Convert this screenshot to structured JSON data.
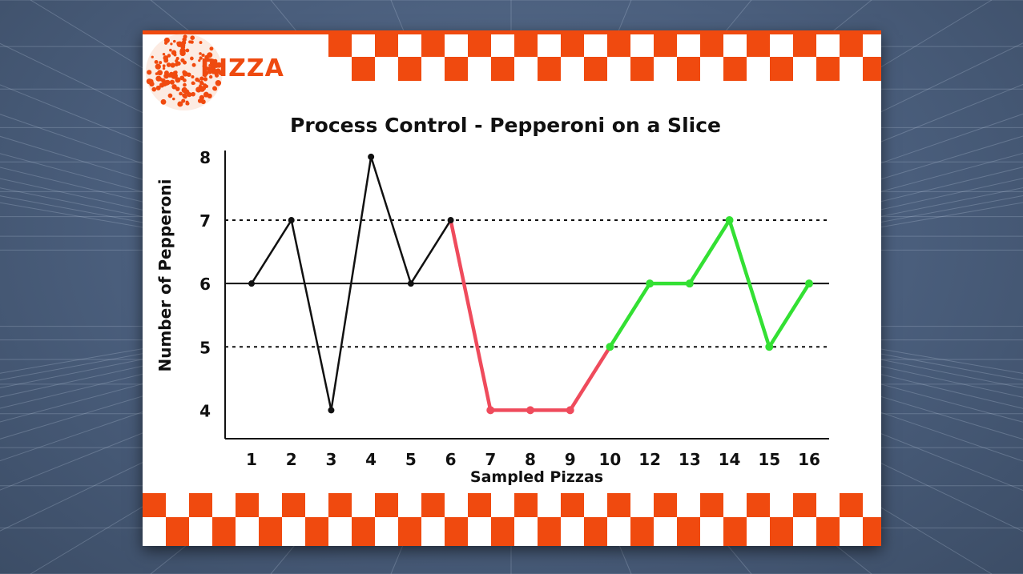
{
  "brand": {
    "name": "PIZZA"
  },
  "colors": {
    "accent": "#f04a0f",
    "normal_line": "#111111",
    "low_line": "#ef4b5c",
    "recovery_line": "#33e033"
  },
  "chart_data": {
    "type": "line",
    "title": "Process Control - Pepperoni on a Slice",
    "xlabel": "Sampled Pizzas",
    "ylabel": "Number of Pepperoni",
    "categories": [
      "1",
      "2",
      "3",
      "4",
      "5",
      "6",
      "7",
      "8",
      "9",
      "10",
      "12",
      "13",
      "14",
      "15",
      "16"
    ],
    "values": [
      6,
      7,
      4,
      8,
      6,
      7,
      4,
      4,
      4,
      5,
      6,
      6,
      7,
      5,
      6
    ],
    "segment_colors": [
      "black",
      "black",
      "black",
      "black",
      "black",
      "red",
      "red",
      "red",
      "red",
      "green",
      "green",
      "green",
      "green",
      "green"
    ],
    "yticks": [
      4,
      5,
      6,
      7,
      8
    ],
    "ylim": [
      3.55,
      8.1
    ],
    "center_line": 6,
    "control_limits": [
      5,
      7
    ],
    "grid": false,
    "legend": "none"
  }
}
